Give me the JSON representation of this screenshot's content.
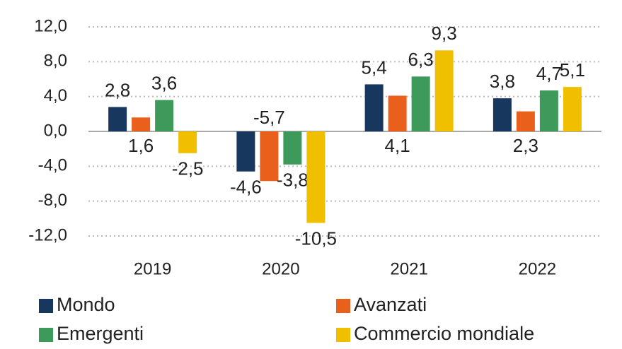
{
  "chart_data": {
    "type": "bar",
    "categories": [
      "2019",
      "2020",
      "2021",
      "2022"
    ],
    "series": [
      {
        "name": "Mondo",
        "color": "#17375e",
        "values": [
          2.8,
          -4.6,
          5.4,
          3.8
        ],
        "value_labels": [
          "2,8",
          "-4,6",
          "5,4",
          "3,8"
        ]
      },
      {
        "name": "Avanzati",
        "color": "#e8601c",
        "values": [
          1.6,
          -5.7,
          4.1,
          2.3
        ],
        "value_labels": [
          "1,6",
          "-5,7",
          "4,1",
          "2,3"
        ]
      },
      {
        "name": "Emergenti",
        "color": "#3d9a5b",
        "values": [
          3.6,
          -3.8,
          6.3,
          4.7
        ],
        "value_labels": [
          "3,6",
          "-3,8",
          "6,3",
          "4,7"
        ]
      },
      {
        "name": "Commercio mondiale",
        "color": "#f0c000",
        "values": [
          -2.5,
          -10.5,
          9.3,
          5.1
        ],
        "value_labels": [
          "-2,5",
          "-10,5",
          "9,3",
          "5,1"
        ]
      }
    ],
    "ylim": [
      -12,
      12
    ],
    "yticks": [
      {
        "value": -12,
        "label": "-12,0"
      },
      {
        "value": -8,
        "label": "-8,0"
      },
      {
        "value": -4,
        "label": "-4,0"
      },
      {
        "value": 0,
        "label": "0,0"
      },
      {
        "value": 4,
        "label": "4,0"
      },
      {
        "value": 8,
        "label": "8,0"
      },
      {
        "value": 12,
        "label": "12,0"
      }
    ],
    "grid": true
  }
}
